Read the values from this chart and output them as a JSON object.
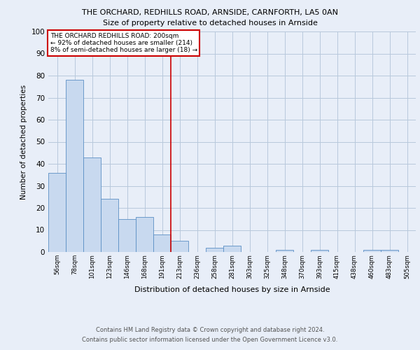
{
  "title1": "THE ORCHARD, REDHILLS ROAD, ARNSIDE, CARNFORTH, LA5 0AN",
  "title2": "Size of property relative to detached houses in Arnside",
  "xlabel": "Distribution of detached houses by size in Arnside",
  "ylabel": "Number of detached properties",
  "footer1": "Contains HM Land Registry data © Crown copyright and database right 2024.",
  "footer2": "Contains public sector information licensed under the Open Government Licence v3.0.",
  "annotation_line1": "THE ORCHARD REDHILLS ROAD: 200sqm",
  "annotation_line2": "← 92% of detached houses are smaller (214)",
  "annotation_line3": "8% of semi-detached houses are larger (18) →",
  "bar_labels": [
    "56sqm",
    "78sqm",
    "101sqm",
    "123sqm",
    "146sqm",
    "168sqm",
    "191sqm",
    "213sqm",
    "236sqm",
    "258sqm",
    "281sqm",
    "303sqm",
    "325sqm",
    "348sqm",
    "370sqm",
    "393sqm",
    "415sqm",
    "438sqm",
    "460sqm",
    "483sqm",
    "505sqm"
  ],
  "bar_values": [
    36,
    78,
    43,
    24,
    15,
    16,
    8,
    5,
    0,
    2,
    3,
    0,
    0,
    1,
    0,
    1,
    0,
    0,
    1,
    1,
    0
  ],
  "bar_color": "#c8d9ef",
  "bar_edge_color": "#5b8fc4",
  "vline_color": "#cc0000",
  "annotation_box_color": "#ffffff",
  "annotation_box_edge_color": "#cc0000",
  "ylim": [
    0,
    100
  ],
  "yticks": [
    0,
    10,
    20,
    30,
    40,
    50,
    60,
    70,
    80,
    90,
    100
  ],
  "background_color": "#e8eef8"
}
